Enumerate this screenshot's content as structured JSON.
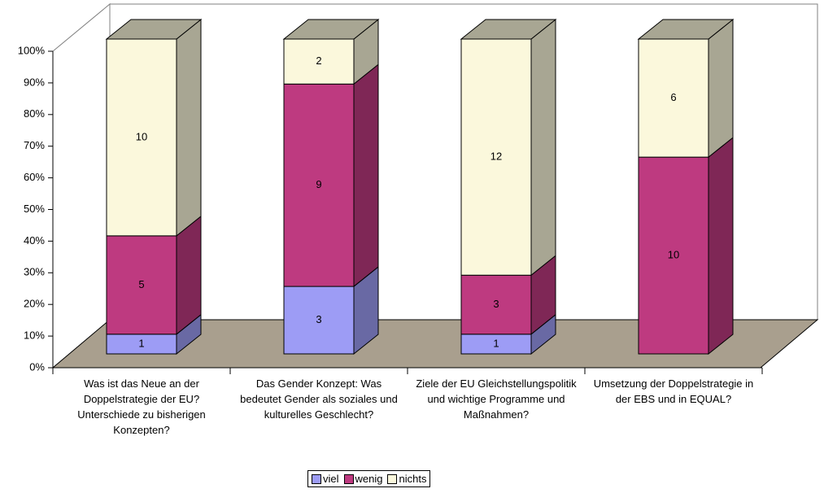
{
  "chart_data": {
    "type": "bar",
    "stacking": "percent",
    "categories": [
      "Was ist das Neue an der Doppelstrategie der EU? Unterschiede zu bisherigen Konzepten?",
      "Das Gender Konzept: Was bedeutet Gender als soziales und kulturelles Geschlecht?",
      "Ziele der EU Gleichstellungspolitik und wichtige Programme und Maßnahmen?",
      "Umsetzung der Doppelstrategie in der EBS und in EQUAL?"
    ],
    "series": [
      {
        "name": "viel",
        "color": "#9d9cf5",
        "values": [
          1,
          3,
          1,
          0
        ]
      },
      {
        "name": "wenig",
        "color": "#be3a80",
        "values": [
          5,
          9,
          3,
          10
        ]
      },
      {
        "name": "nichts",
        "color": "#fbf8dc",
        "values": [
          10,
          2,
          12,
          6
        ]
      }
    ],
    "ylim": [
      0,
      100
    ],
    "yticks": [
      {
        "value": 0,
        "label": "0%"
      },
      {
        "value": 10,
        "label": "10%"
      },
      {
        "value": 20,
        "label": "20%"
      },
      {
        "value": 30,
        "label": "30%"
      },
      {
        "value": 40,
        "label": "40%"
      },
      {
        "value": 50,
        "label": "50%"
      },
      {
        "value": 60,
        "label": "60%"
      },
      {
        "value": 70,
        "label": "70%"
      },
      {
        "value": 80,
        "label": "80%"
      },
      {
        "value": 90,
        "label": "90%"
      },
      {
        "value": 100,
        "label": "100%"
      }
    ],
    "grid": false,
    "legend": "bottom"
  }
}
